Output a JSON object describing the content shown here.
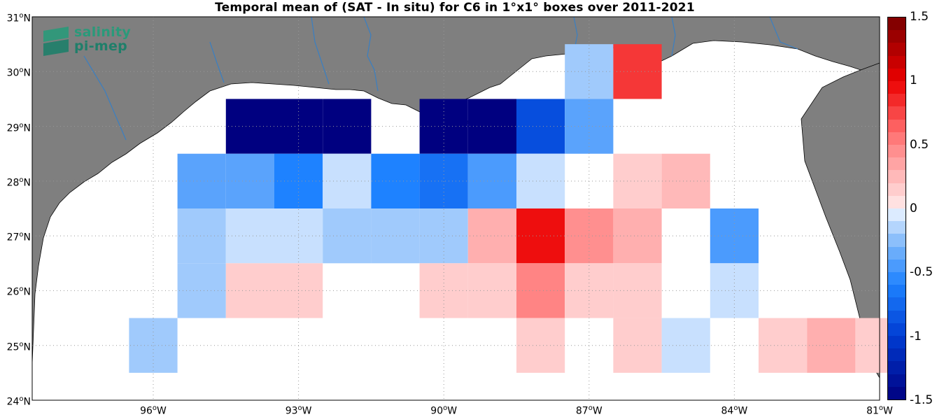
{
  "title": "Temporal mean of (SAT - In situ) for C6 in 1°x1° boxes over 2011-2021",
  "logo": {
    "line1": "salinity",
    "line2": "pi-mep"
  },
  "axes": {
    "lat_ticks": [
      "24",
      "25",
      "26",
      "27",
      "28",
      "29",
      "30",
      "31"
    ],
    "lat_suffix": "N",
    "lon_ticks": [
      "96",
      "93",
      "90",
      "87",
      "84",
      "81"
    ],
    "lon_suffix": "W",
    "lon_range": [
      -98.5,
      -81
    ],
    "lat_range": [
      24,
      31
    ]
  },
  "colorbar": {
    "ticks": [
      "1.5",
      "1",
      "0.5",
      "0",
      "-0.5",
      "-1",
      "-1.5"
    ],
    "range": [
      -1.5,
      1.5
    ],
    "steps": 30
  },
  "colors": {
    "land": "#7f7f7f",
    "ocean": "#ffffff",
    "rivers": "#3a7fc2",
    "coast": "#000000"
  },
  "chart_data": {
    "type": "heatmap",
    "title": "Temporal mean of (SAT - In situ) for C6 in 1°x1° boxes over 2011-2021",
    "cell_size_deg": 1,
    "value_range": [
      -1.5,
      1.5
    ],
    "cells": [
      {
        "lon": -87,
        "lat": 30,
        "value": -0.2
      },
      {
        "lon": -86,
        "lat": 30,
        "value": 0.8
      },
      {
        "lon": -94,
        "lat": 29,
        "value": -1.5
      },
      {
        "lon": -93,
        "lat": 29,
        "value": -1.5
      },
      {
        "lon": -92,
        "lat": 29,
        "value": -1.5
      },
      {
        "lon": -90,
        "lat": 29,
        "value": -1.5
      },
      {
        "lon": -89,
        "lat": 29,
        "value": -1.5
      },
      {
        "lon": -88,
        "lat": 29,
        "value": -0.9
      },
      {
        "lon": -87,
        "lat": 29,
        "value": -0.4
      },
      {
        "lon": -95,
        "lat": 28,
        "value": -0.4
      },
      {
        "lon": -94,
        "lat": 28,
        "value": -0.4
      },
      {
        "lon": -93,
        "lat": 28,
        "value": -0.6
      },
      {
        "lon": -92,
        "lat": 28,
        "value": -0.1
      },
      {
        "lon": -91,
        "lat": 28,
        "value": -0.6
      },
      {
        "lon": -90,
        "lat": 28,
        "value": -0.7
      },
      {
        "lon": -89,
        "lat": 28,
        "value": -0.45
      },
      {
        "lon": -88,
        "lat": 28,
        "value": -0.1
      },
      {
        "lon": -86,
        "lat": 28,
        "value": 0.15
      },
      {
        "lon": -85,
        "lat": 28,
        "value": 0.25
      },
      {
        "lon": -95,
        "lat": 27,
        "value": -0.2
      },
      {
        "lon": -94,
        "lat": 27,
        "value": -0.1
      },
      {
        "lon": -93,
        "lat": 27,
        "value": -0.1
      },
      {
        "lon": -92,
        "lat": 27,
        "value": -0.2
      },
      {
        "lon": -91,
        "lat": 27,
        "value": -0.2
      },
      {
        "lon": -90,
        "lat": 27,
        "value": -0.2
      },
      {
        "lon": -89,
        "lat": 27,
        "value": 0.3
      },
      {
        "lon": -88,
        "lat": 27,
        "value": 0.95
      },
      {
        "lon": -87,
        "lat": 27,
        "value": 0.45
      },
      {
        "lon": -86,
        "lat": 27,
        "value": 0.3
      },
      {
        "lon": -84,
        "lat": 27,
        "value": -0.45
      },
      {
        "lon": -95,
        "lat": 26,
        "value": -0.2
      },
      {
        "lon": -94,
        "lat": 26,
        "value": 0.15
      },
      {
        "lon": -93,
        "lat": 26,
        "value": 0.15
      },
      {
        "lon": -90,
        "lat": 26,
        "value": 0.15
      },
      {
        "lon": -89,
        "lat": 26,
        "value": 0.15
      },
      {
        "lon": -88,
        "lat": 26,
        "value": 0.5
      },
      {
        "lon": -87,
        "lat": 26,
        "value": 0.15
      },
      {
        "lon": -86,
        "lat": 26,
        "value": 0.15
      },
      {
        "lon": -84,
        "lat": 26,
        "value": -0.1
      },
      {
        "lon": -96,
        "lat": 25,
        "value": -0.2
      },
      {
        "lon": -88,
        "lat": 25,
        "value": 0.15
      },
      {
        "lon": -86,
        "lat": 25,
        "value": 0.15
      },
      {
        "lon": -85,
        "lat": 25,
        "value": -0.1
      },
      {
        "lon": -83,
        "lat": 25,
        "value": 0.15
      },
      {
        "lon": -82,
        "lat": 25,
        "value": 0.3
      },
      {
        "lon": -81,
        "lat": 25,
        "value": 0.15
      }
    ]
  }
}
